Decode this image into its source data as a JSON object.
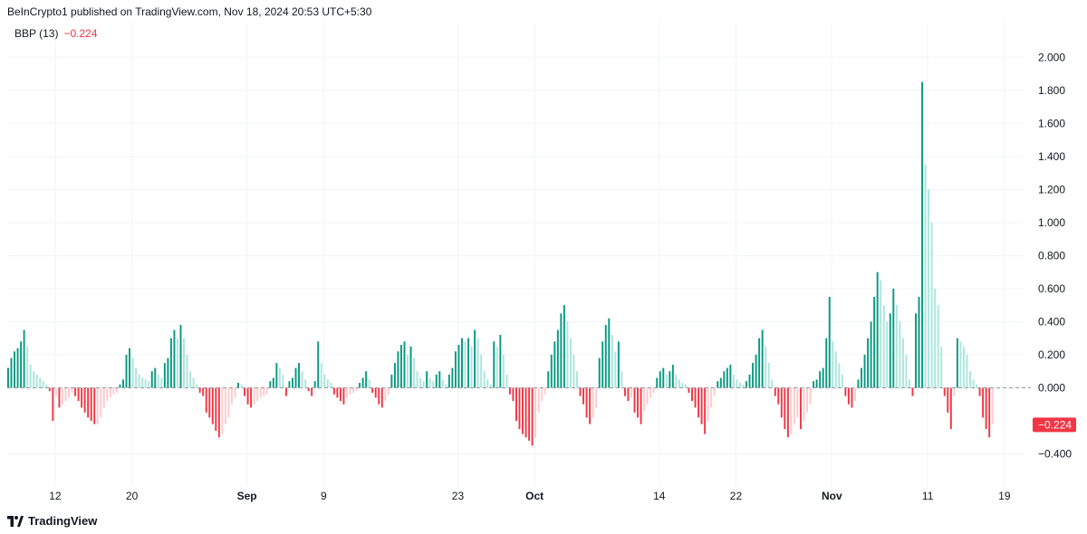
{
  "header": {
    "publisher": "BeInCrypto1 published on TradingView.com, Nov 18, 2024 20:53 UTC+5:30"
  },
  "indicator": {
    "name": "BBP (13)",
    "value": "−0.224"
  },
  "footer": {
    "brand": "TradingView",
    "logo_icon": "tradingview-logo-icon"
  },
  "colors": {
    "pos_strong": "#089981",
    "pos_weak": "#ace5dc",
    "neg_strong": "#f23645",
    "neg_weak": "#fccbcd",
    "last_price_bg": "#f23645",
    "grid": "#f0f3fa"
  },
  "chart_data": {
    "type": "bar",
    "title": "BBP (13)",
    "last_value": -0.224,
    "last_value_label": "−0.224",
    "ylim": [
      -0.6,
      2.1
    ],
    "y_ticks": [
      -0.4,
      0.0,
      0.2,
      0.4,
      0.6,
      0.8,
      1.0,
      1.2,
      1.4,
      1.6,
      1.8,
      2.0
    ],
    "y_tick_labels": [
      "−0.400",
      "0.000",
      "0.200",
      "0.400",
      "0.600",
      "0.800",
      "1.000",
      "1.200",
      "1.400",
      "1.600",
      "1.800",
      "2.000"
    ],
    "x_ticks": [
      {
        "label": "12",
        "date": "2024-08-12",
        "bold": false
      },
      {
        "label": "20",
        "date": "2024-08-20",
        "bold": false
      },
      {
        "label": "Sep",
        "date": "2024-09-01",
        "bold": true
      },
      {
        "label": "9",
        "date": "2024-09-09",
        "bold": false
      },
      {
        "label": "23",
        "date": "2024-09-23",
        "bold": false
      },
      {
        "label": "Oct",
        "date": "2024-10-01",
        "bold": true
      },
      {
        "label": "14",
        "date": "2024-10-14",
        "bold": false
      },
      {
        "label": "22",
        "date": "2024-10-22",
        "bold": false
      },
      {
        "label": "Nov",
        "date": "2024-11-01",
        "bold": true
      },
      {
        "label": "11",
        "date": "2024-11-11",
        "bold": false
      },
      {
        "label": "19",
        "date": "2024-11-19",
        "bold": false
      }
    ],
    "x_range": [
      "2024-08-07",
      "2024-11-21"
    ],
    "grid": true,
    "bars_per_day": 3,
    "series": [
      {
        "start": "2024-08-07",
        "values": [
          0.12,
          0.18,
          0.22,
          0.24,
          0.28,
          0.35,
          0.25,
          0.14,
          0.1,
          0.08,
          0.06,
          0.04,
          0.02,
          -0.02,
          -0.2,
          -0.05,
          -0.12,
          -0.1,
          -0.08,
          -0.06,
          -0.03,
          -0.05,
          -0.08,
          -0.12,
          -0.15,
          -0.18,
          -0.2,
          -0.22,
          -0.22,
          -0.18,
          -0.12,
          -0.08,
          -0.06,
          -0.04,
          -0.03,
          0.02,
          0.05,
          0.2,
          0.24,
          0.18,
          0.12,
          0.08,
          0.06,
          0.05,
          0.04,
          0.1,
          0.12,
          0.08,
          0.06,
          0.15,
          0.18,
          0.3,
          0.35,
          0.3,
          0.38,
          0.3,
          0.2,
          0.1,
          0.06,
          0.02,
          -0.03,
          -0.05,
          -0.15,
          -0.18,
          -0.22,
          -0.26,
          -0.3,
          -0.28,
          -0.22,
          -0.18,
          -0.1,
          -0.06,
          0.03,
          0.02,
          -0.05,
          -0.1,
          -0.12,
          -0.1,
          -0.08,
          -0.06,
          -0.05,
          -0.04,
          0.04,
          0.06,
          0.15,
          0.12,
          0.08,
          -0.05,
          0.04,
          0.06,
          0.12,
          0.15,
          0.1,
          0.05,
          -0.02,
          -0.05,
          0.04,
          0.28,
          0.15,
          0.08,
          0.05,
          0.03,
          -0.04,
          -0.06,
          -0.08,
          -0.1,
          -0.06,
          -0.04,
          -0.03,
          -0.02,
          0.03,
          0.06,
          0.1,
          0.05,
          -0.03,
          -0.06,
          -0.1,
          -0.12,
          -0.08,
          -0.04,
          0.08,
          0.15,
          0.22,
          0.26,
          0.28,
          0.2,
          0.25,
          0.18,
          0.1,
          0.06,
          0.04,
          0.1,
          0.06,
          0.04,
          0.08,
          0.1,
          0.05,
          0.02,
          0.08,
          0.12,
          0.22,
          0.26,
          0.3,
          0.28,
          0.3,
          0.25,
          0.35,
          0.3,
          0.2,
          0.1,
          0.05,
          0.02,
          0.28,
          0.25,
          0.32,
          0.2,
          0.08,
          -0.04,
          -0.08,
          -0.2,
          -0.25,
          -0.28,
          -0.3,
          -0.32,
          -0.35,
          -0.3,
          -0.15,
          -0.08,
          -0.04,
          0.1,
          0.2,
          0.28,
          0.35,
          0.45,
          0.5,
          0.4,
          0.3,
          0.2,
          0.1,
          -0.05,
          -0.1,
          -0.18,
          -0.22,
          -0.18,
          -0.12,
          0.18,
          0.28,
          0.38,
          0.42,
          0.32,
          0.22,
          0.28,
          0.1,
          -0.05,
          -0.08,
          -0.06,
          -0.15,
          -0.18,
          -0.22,
          -0.14,
          -0.1,
          -0.06,
          -0.03,
          0.06,
          0.1,
          0.12,
          0.08,
          0.1,
          0.14,
          0.08,
          0.05,
          0.03,
          0.02,
          -0.03,
          -0.08,
          -0.12,
          -0.18,
          -0.22,
          -0.28,
          -0.2,
          -0.12,
          -0.05,
          0.04,
          0.06,
          0.1,
          0.12,
          0.14,
          0.08,
          0.05,
          0.03,
          0.02,
          0.04,
          0.08,
          0.15,
          0.2,
          0.3,
          0.35,
          0.25,
          0.15,
          0.05,
          -0.05,
          -0.1,
          -0.18,
          -0.25,
          -0.3,
          -0.28,
          -0.22,
          -0.18,
          -0.25,
          -0.2,
          -0.15,
          -0.1,
          0.04,
          0.05,
          0.1,
          0.12,
          0.3,
          0.55,
          0.28,
          0.22,
          0.15,
          0.08,
          -0.05,
          -0.1,
          -0.12,
          -0.08,
          0.05,
          0.12,
          0.2,
          0.3,
          0.4,
          0.55,
          0.7,
          0.65,
          0.5,
          0.4,
          0.45,
          0.6,
          0.5,
          0.4,
          0.3,
          0.2,
          0.05,
          -0.05,
          0.45,
          0.55,
          1.85,
          1.35,
          1.2,
          1.0,
          0.6,
          0.5,
          0.25,
          -0.05,
          -0.15,
          -0.25,
          -0.05,
          0.3,
          0.28,
          0.25,
          0.2,
          0.1,
          0.05,
          0.02,
          -0.05,
          -0.18,
          -0.25,
          -0.3,
          -0.22
        ]
      }
    ]
  }
}
